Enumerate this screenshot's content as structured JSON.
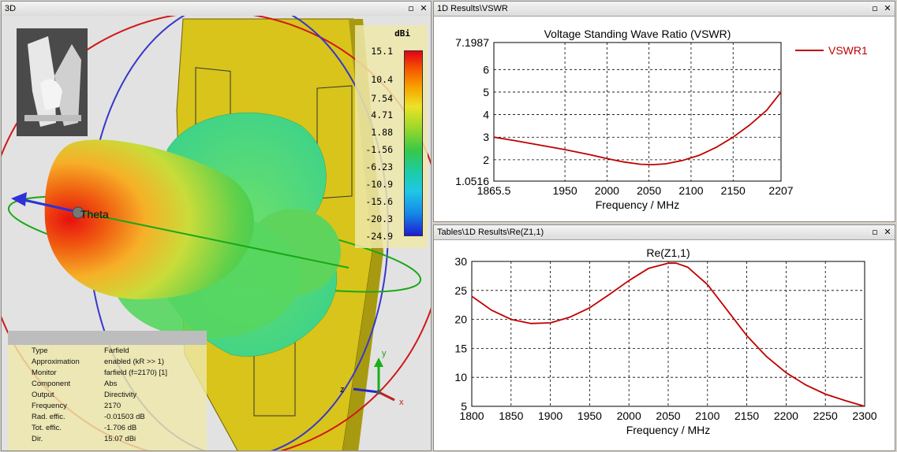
{
  "panes": {
    "three_d": {
      "title": "3D",
      "theta_label": "Theta",
      "axis_z": "z",
      "axis_y": "y",
      "axis_x": "x"
    },
    "vswr": {
      "title": "1D Results\\VSWR"
    },
    "re": {
      "title": "Tables\\1D Results\\Re(Z1,1)"
    }
  },
  "window_buttons": {
    "restore": "▫",
    "close": "✕"
  },
  "colorscale": {
    "unit": "dBi",
    "labels": [
      "15.1",
      "10.4",
      "7.54",
      "4.71",
      "1.88",
      "-1.56",
      "-6.23",
      "-10.9",
      "-15.6",
      "-20.3",
      "-24.9"
    ]
  },
  "info": [
    {
      "key": "Type",
      "value": "Farfield"
    },
    {
      "key": "Approximation",
      "value": "enabled (kR >> 1)"
    },
    {
      "key": "Monitor",
      "value": "farfield (f=2170) [1]"
    },
    {
      "key": "Component",
      "value": "Abs"
    },
    {
      "key": "Output",
      "value": "Directivity"
    },
    {
      "key": "Frequency",
      "value": "2170"
    },
    {
      "key": "Rad. effic.",
      "value": "-0.01503 dB"
    },
    {
      "key": "Tot. effic.",
      "value": "-1.706 dB"
    },
    {
      "key": "Dir.",
      "value": "15.07 dBi"
    }
  ],
  "chart_data": [
    {
      "type": "line",
      "title": "Voltage Standing Wave Ratio (VSWR)",
      "xlabel": "Frequency / MHz",
      "ylabel": "",
      "xlim": [
        1865.5,
        2207
      ],
      "ylim": [
        1.0516,
        7.1987
      ],
      "xticks": [
        1865.5,
        1950,
        2000,
        2050,
        2100,
        2150,
        2207
      ],
      "xtick_labels": [
        "1865.5",
        "1950",
        "2000",
        "2050",
        "2100",
        "2150",
        "2207"
      ],
      "yticks": [
        1.0516,
        2,
        3,
        4,
        5,
        6,
        7.1987
      ],
      "ytick_labels": [
        "1.0516",
        "2",
        "3",
        "4",
        "5",
        "6",
        "7.1987"
      ],
      "legend": [
        "VSWR1"
      ],
      "series": [
        {
          "name": "VSWR1",
          "color": "#c00000",
          "x": [
            1865.5,
            1890,
            1920,
            1950,
            1980,
            2000,
            2020,
            2040,
            2055,
            2070,
            2090,
            2110,
            2130,
            2150,
            2170,
            2190,
            2207
          ],
          "y": [
            3.0,
            2.85,
            2.65,
            2.45,
            2.22,
            2.05,
            1.9,
            1.8,
            1.78,
            1.82,
            1.97,
            2.2,
            2.55,
            3.0,
            3.55,
            4.2,
            5.0
          ]
        }
      ]
    },
    {
      "type": "line",
      "title": "Re(Z1,1)",
      "xlabel": "Frequency / MHz",
      "ylabel": "",
      "xlim": [
        1800,
        2300
      ],
      "ylim": [
        5,
        30
      ],
      "xticks": [
        1800,
        1850,
        1900,
        1950,
        2000,
        2050,
        2100,
        2150,
        2200,
        2250,
        2300
      ],
      "yticks": [
        5,
        10,
        15,
        20,
        25,
        30
      ],
      "series": [
        {
          "name": "Re(Z1,1)",
          "color": "#c00000",
          "x": [
            1800,
            1825,
            1850,
            1875,
            1900,
            1925,
            1950,
            1975,
            2000,
            2025,
            2050,
            2060,
            2075,
            2100,
            2125,
            2150,
            2175,
            2200,
            2225,
            2250,
            2275,
            2300
          ],
          "y": [
            24.0,
            21.6,
            20.0,
            19.3,
            19.4,
            20.4,
            22.0,
            24.3,
            26.7,
            28.8,
            29.7,
            29.7,
            29.0,
            26.0,
            21.6,
            17.2,
            13.6,
            10.8,
            8.7,
            7.1,
            6.0,
            5.0
          ]
        }
      ]
    }
  ]
}
